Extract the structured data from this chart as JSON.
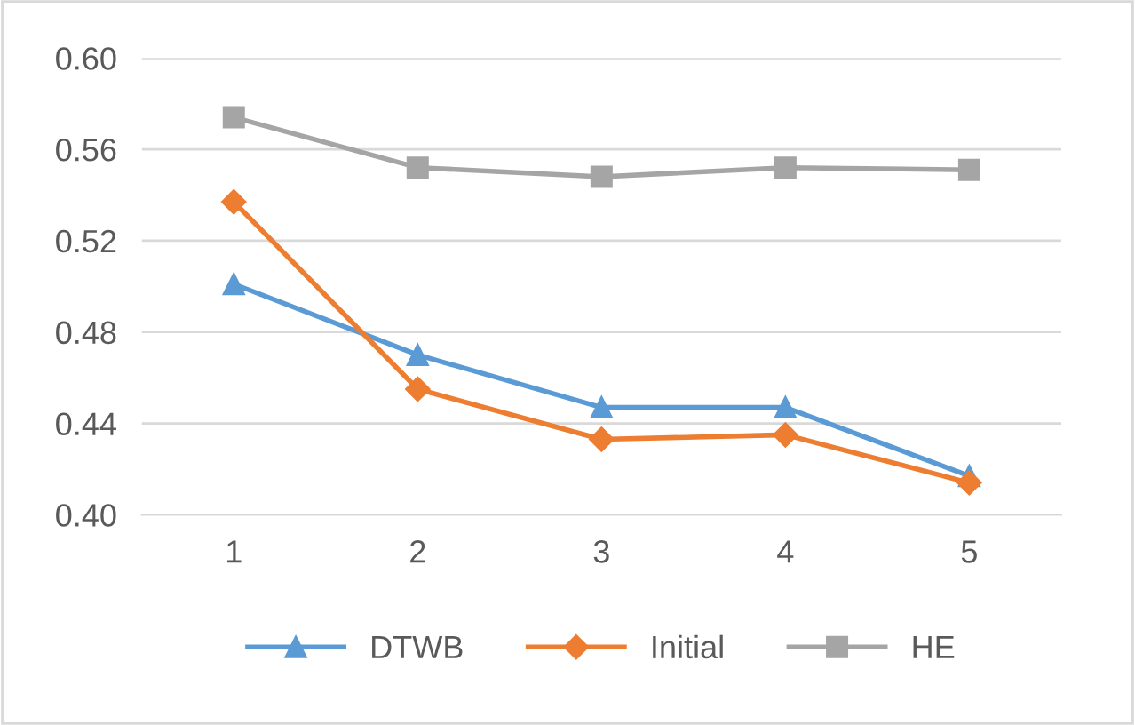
{
  "chart_data": {
    "type": "line",
    "categories": [
      "1",
      "2",
      "3",
      "4",
      "5"
    ],
    "series": [
      {
        "name": "DTWB",
        "color": "#5b9bd5",
        "marker": "triangle",
        "values": [
          0.501,
          0.47,
          0.447,
          0.447,
          0.417
        ]
      },
      {
        "name": "Initial",
        "color": "#ed7d31",
        "marker": "diamond",
        "values": [
          0.537,
          0.455,
          0.433,
          0.435,
          0.414
        ]
      },
      {
        "name": "HE",
        "color": "#a5a5a5",
        "marker": "square",
        "values": [
          0.574,
          0.552,
          0.548,
          0.552,
          0.551
        ]
      }
    ],
    "ylim": [
      0.4,
      0.6
    ],
    "yticks": [
      {
        "value": 0.4,
        "label": "0.40"
      },
      {
        "value": 0.44,
        "label": "0.44"
      },
      {
        "value": 0.48,
        "label": "0.48"
      },
      {
        "value": 0.52,
        "label": "0.52"
      },
      {
        "value": 0.56,
        "label": "0.56"
      },
      {
        "value": 0.6,
        "label": "0.60"
      }
    ],
    "grid": "y",
    "legend": "bottom",
    "line_style": "solid"
  }
}
